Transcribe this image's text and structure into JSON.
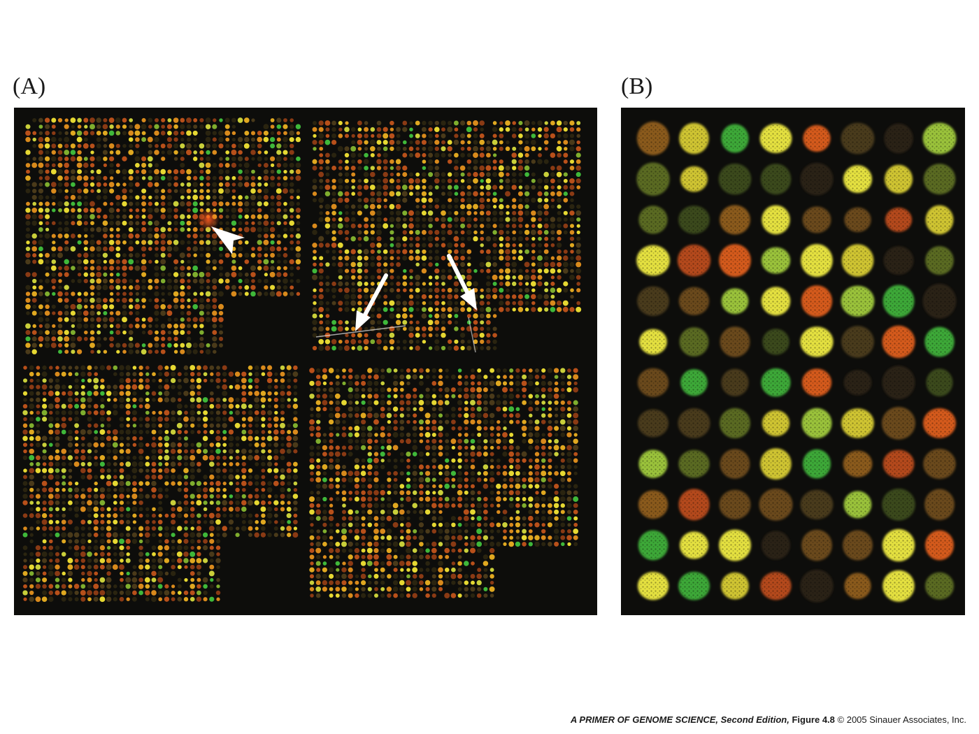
{
  "figure": {
    "panel_a": {
      "label": "(A)"
    },
    "panel_b": {
      "label": "(B)"
    },
    "caption": {
      "book_title": "A PRIMER OF GENOME SCIENCE, Second Edition,",
      "figure_number": "Figure 4.8",
      "copyright": "© 2005 Sinauer Associates, Inc."
    }
  },
  "colors": {
    "background": "#0d0d0b",
    "spot_red": "#c8421a",
    "spot_orange": "#d98a1c",
    "spot_yellow": "#e6d832",
    "spot_green": "#3fb83a",
    "annotation": "#ffffff"
  }
}
